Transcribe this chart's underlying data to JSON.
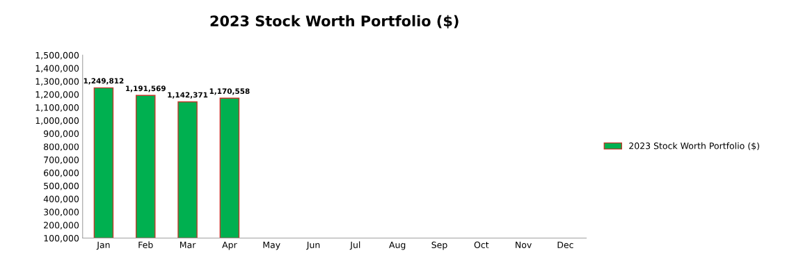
{
  "chart_data": {
    "type": "bar",
    "title": "2023 Stock Worth Portfolio ($)",
    "categories": [
      "Jan",
      "Feb",
      "Mar",
      "Apr",
      "May",
      "Jun",
      "Jul",
      "Aug",
      "Sep",
      "Oct",
      "Nov",
      "Dec"
    ],
    "series": [
      {
        "name": "2023 Stock Worth Portfolio ($)",
        "color": "#00b050",
        "values": [
          1249812,
          1191569,
          1142371,
          1170558,
          null,
          null,
          null,
          null,
          null,
          null,
          null,
          null
        ],
        "value_labels": [
          "1,249,812",
          "1,191,569",
          "1,142,371",
          "1,170,558",
          null,
          null,
          null,
          null,
          null,
          null,
          null,
          null
        ]
      }
    ],
    "ylim": [
      100000,
      1500000
    ],
    "yticks": [
      {
        "value": 100000,
        "label": "100,000"
      },
      {
        "value": 200000,
        "label": "200,000"
      },
      {
        "value": 300000,
        "label": "300,000"
      },
      {
        "value": 400000,
        "label": "400,000"
      },
      {
        "value": 500000,
        "label": "500,000"
      },
      {
        "value": 600000,
        "label": "600,000"
      },
      {
        "value": 700000,
        "label": "700,000"
      },
      {
        "value": 800000,
        "label": "800,000"
      },
      {
        "value": 900000,
        "label": "900,000"
      },
      {
        "value": 1000000,
        "label": "1,000,000"
      },
      {
        "value": 1100000,
        "label": "1,100,000"
      },
      {
        "value": 1200000,
        "label": "1,200,000"
      },
      {
        "value": 1300000,
        "label": "1,300,000"
      },
      {
        "value": 1400000,
        "label": "1,400,000"
      },
      {
        "value": 1500000,
        "label": "1,500,000"
      }
    ],
    "legend": "right",
    "grid": false
  }
}
